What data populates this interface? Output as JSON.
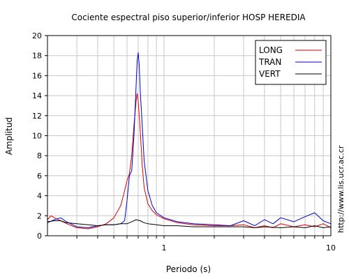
{
  "chart_data": {
    "type": "line",
    "title": "Cociente espectral piso superior/inferior  HOSP HEREDIA",
    "xlabel": "Periodo (s)",
    "ylabel": "Amplitud",
    "x_scale": "log",
    "xlim": [
      0.2,
      10
    ],
    "ylim": [
      0,
      20
    ],
    "x_tick_labels": [
      "1",
      "10"
    ],
    "y_ticks": [
      0,
      2,
      4,
      6,
      8,
      10,
      12,
      14,
      16,
      18,
      20
    ],
    "grid": true,
    "legend_position": "top-right",
    "series": [
      {
        "name": "LONG",
        "color": "#e00000",
        "points": [
          [
            0.2,
            1.6
          ],
          [
            0.21,
            2.0
          ],
          [
            0.22,
            1.8
          ],
          [
            0.24,
            1.5
          ],
          [
            0.27,
            1.1
          ],
          [
            0.3,
            0.8
          ],
          [
            0.35,
            0.7
          ],
          [
            0.4,
            0.9
          ],
          [
            0.45,
            1.2
          ],
          [
            0.5,
            1.8
          ],
          [
            0.55,
            3.0
          ],
          [
            0.58,
            4.5
          ],
          [
            0.6,
            5.5
          ],
          [
            0.62,
            6.2
          ],
          [
            0.64,
            8.0
          ],
          [
            0.66,
            11.0
          ],
          [
            0.68,
            13.5
          ],
          [
            0.69,
            14.2
          ],
          [
            0.7,
            13.5
          ],
          [
            0.72,
            10.5
          ],
          [
            0.74,
            7.0
          ],
          [
            0.76,
            4.8
          ],
          [
            0.8,
            3.2
          ],
          [
            0.85,
            2.5
          ],
          [
            0.9,
            2.1
          ],
          [
            1.0,
            1.7
          ],
          [
            1.2,
            1.3
          ],
          [
            1.5,
            1.1
          ],
          [
            2.0,
            1.0
          ],
          [
            2.5,
            1.0
          ],
          [
            3.0,
            1.1
          ],
          [
            3.5,
            0.8
          ],
          [
            4.0,
            1.0
          ],
          [
            4.5,
            0.8
          ],
          [
            5.0,
            1.2
          ],
          [
            6.0,
            0.9
          ],
          [
            7.0,
            1.1
          ],
          [
            8.0,
            0.9
          ],
          [
            9.0,
            1.2
          ],
          [
            10.0,
            0.8
          ]
        ]
      },
      {
        "name": "TRAN",
        "color": "#0000cc",
        "points": [
          [
            0.2,
            1.3
          ],
          [
            0.22,
            1.6
          ],
          [
            0.24,
            1.8
          ],
          [
            0.26,
            1.4
          ],
          [
            0.3,
            0.9
          ],
          [
            0.35,
            0.8
          ],
          [
            0.4,
            1.0
          ],
          [
            0.45,
            1.1
          ],
          [
            0.5,
            1.1
          ],
          [
            0.55,
            1.2
          ],
          [
            0.58,
            1.5
          ],
          [
            0.6,
            3.5
          ],
          [
            0.62,
            6.0
          ],
          [
            0.64,
            6.5
          ],
          [
            0.66,
            10.0
          ],
          [
            0.68,
            15.0
          ],
          [
            0.69,
            17.5
          ],
          [
            0.7,
            18.3
          ],
          [
            0.71,
            17.0
          ],
          [
            0.72,
            14.5
          ],
          [
            0.74,
            11.0
          ],
          [
            0.76,
            7.5
          ],
          [
            0.8,
            4.5
          ],
          [
            0.85,
            3.0
          ],
          [
            0.9,
            2.3
          ],
          [
            1.0,
            1.8
          ],
          [
            1.2,
            1.4
          ],
          [
            1.5,
            1.2
          ],
          [
            2.0,
            1.1
          ],
          [
            2.5,
            1.0
          ],
          [
            3.0,
            1.5
          ],
          [
            3.5,
            1.0
          ],
          [
            4.0,
            1.6
          ],
          [
            4.5,
            1.2
          ],
          [
            5.0,
            1.8
          ],
          [
            6.0,
            1.4
          ],
          [
            7.0,
            1.9
          ],
          [
            8.0,
            2.3
          ],
          [
            9.0,
            1.5
          ],
          [
            10.0,
            1.2
          ]
        ]
      },
      {
        "name": "VERT",
        "color": "#000000",
        "points": [
          [
            0.2,
            1.4
          ],
          [
            0.22,
            1.5
          ],
          [
            0.24,
            1.5
          ],
          [
            0.26,
            1.3
          ],
          [
            0.3,
            1.2
          ],
          [
            0.35,
            1.1
          ],
          [
            0.4,
            1.0
          ],
          [
            0.45,
            1.1
          ],
          [
            0.5,
            1.1
          ],
          [
            0.55,
            1.2
          ],
          [
            0.6,
            1.2
          ],
          [
            0.64,
            1.4
          ],
          [
            0.68,
            1.6
          ],
          [
            0.72,
            1.5
          ],
          [
            0.76,
            1.3
          ],
          [
            0.8,
            1.2
          ],
          [
            0.9,
            1.1
          ],
          [
            1.0,
            1.0
          ],
          [
            1.2,
            1.0
          ],
          [
            1.5,
            0.9
          ],
          [
            2.0,
            0.9
          ],
          [
            2.5,
            0.9
          ],
          [
            3.0,
            0.9
          ],
          [
            3.5,
            0.8
          ],
          [
            4.0,
            0.9
          ],
          [
            5.0,
            0.8
          ],
          [
            6.0,
            0.9
          ],
          [
            7.0,
            0.8
          ],
          [
            8.0,
            1.0
          ],
          [
            9.0,
            0.8
          ],
          [
            10.0,
            0.9
          ]
        ]
      }
    ]
  },
  "side_label": "http://www.lis.ucr.ac.cr"
}
